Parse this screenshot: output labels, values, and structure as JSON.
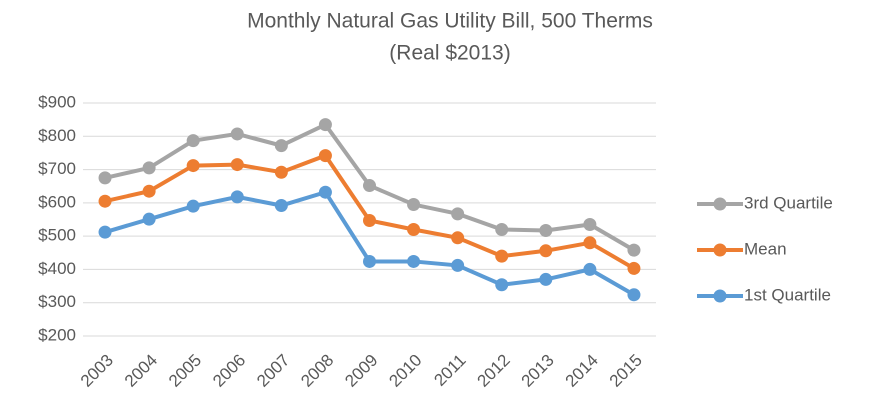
{
  "chart_data": {
    "type": "line",
    "title": "Monthly Natural Gas Utility Bill, 500 Therms",
    "subtitle": "(Real $2013)",
    "categories": [
      "2003",
      "2004",
      "2005",
      "2006",
      "2007",
      "2008",
      "2009",
      "2010",
      "2011",
      "2012",
      "2013",
      "2014",
      "2015"
    ],
    "series": [
      {
        "name": "3rd Quartile",
        "color": "#a5a5a5",
        "values": [
          675,
          705,
          787,
          807,
          772,
          835,
          652,
          595,
          567,
          520,
          517,
          535,
          458
        ]
      },
      {
        "name": "Mean",
        "color": "#ed7d31",
        "values": [
          605,
          635,
          712,
          715,
          692,
          742,
          547,
          520,
          495,
          440,
          456,
          480,
          403
        ]
      },
      {
        "name": "1st Quartile",
        "color": "#5b9bd5",
        "values": [
          512,
          551,
          590,
          618,
          592,
          632,
          424,
          424,
          412,
          354,
          370,
          400,
          324
        ]
      }
    ],
    "ylim": [
      200,
      900
    ],
    "yticks": [
      {
        "value": 200,
        "label": "$200"
      },
      {
        "value": 300,
        "label": "$300"
      },
      {
        "value": 400,
        "label": "$400"
      },
      {
        "value": 500,
        "label": "$500"
      },
      {
        "value": 600,
        "label": "$600"
      },
      {
        "value": 700,
        "label": "$700"
      },
      {
        "value": 800,
        "label": "$800"
      },
      {
        "value": 900,
        "label": "$900"
      }
    ],
    "grid": true,
    "legend": "right"
  }
}
